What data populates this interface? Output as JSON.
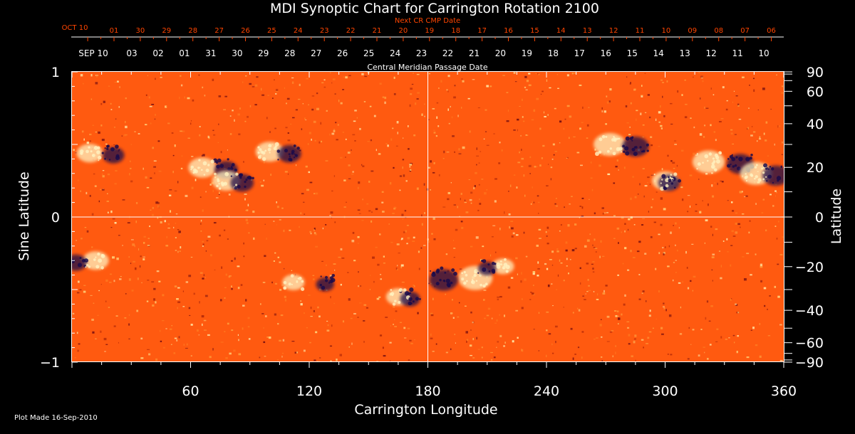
{
  "colors": {
    "background": "#000000",
    "text": "#ffffff",
    "accent": "#ff4500",
    "field_base": "#ff5a10",
    "positive_polarity": "#fff2c0",
    "negative_polarity": "#1a0a4a"
  },
  "chart_data": {
    "type": "heatmap",
    "title": "MDI Synoptic Chart for Carrington Rotation 2100",
    "xlabel": "Carrington Longitude",
    "ylabel_left": "Sine Latitude",
    "ylabel_right": "Latitude",
    "xlim": [
      0,
      360
    ],
    "ylim": [
      -1,
      1
    ],
    "x_ticks": [
      60,
      120,
      180,
      240,
      300,
      360
    ],
    "x_tick_labels": [
      "60",
      "120",
      "180",
      "240",
      "300",
      "360"
    ],
    "y_left_ticks": [
      {
        "value": 1,
        "label": "1"
      },
      {
        "value": 0,
        "label": "0"
      },
      {
        "value": -1,
        "label": "−1"
      }
    ],
    "y_right_ticks_deg": [
      {
        "deg": 90,
        "label": "90"
      },
      {
        "deg": 60,
        "label": "60"
      },
      {
        "deg": 40,
        "label": "40"
      },
      {
        "deg": 20,
        "label": "20"
      },
      {
        "deg": 0,
        "label": "0"
      },
      {
        "deg": -20,
        "label": "−20"
      },
      {
        "deg": -40,
        "label": "−40"
      },
      {
        "deg": -60,
        "label": "−60"
      },
      {
        "deg": -90,
        "label": "−90"
      }
    ],
    "cmp_axis_label": "Central Meridian Passage Date",
    "cmp_start_label": "SEP 10",
    "cmp_dates": [
      "03",
      "02",
      "01",
      "31",
      "30",
      "29",
      "28",
      "27",
      "26",
      "25",
      "24",
      "23",
      "22",
      "21",
      "20",
      "19",
      "18",
      "17",
      "16",
      "15",
      "14",
      "13",
      "12",
      "11",
      "10"
    ],
    "next_cr_label": "Next CR CMP Date",
    "next_cr_start_label": "OCT 10",
    "next_cr_dates": [
      "01",
      "30",
      "29",
      "28",
      "27",
      "26",
      "25",
      "24",
      "23",
      "22",
      "21",
      "20",
      "19",
      "18",
      "17",
      "16",
      "15",
      "14",
      "13",
      "12",
      "11",
      "10",
      "09",
      "08",
      "07",
      "06"
    ],
    "crosshair": {
      "longitude": 180,
      "sine_latitude": 0
    },
    "active_regions": [
      {
        "lon": 15,
        "sinlat": 0.44,
        "pos_dlon": -6,
        "neg_dlon": 6,
        "strength": 0.6
      },
      {
        "lon": 72,
        "sinlat": 0.34,
        "pos_dlon": -6,
        "neg_dlon": 6,
        "strength": 0.7
      },
      {
        "lon": 82,
        "sinlat": 0.25,
        "pos_dlon": -4,
        "neg_dlon": 4,
        "strength": 0.7
      },
      {
        "lon": 105,
        "sinlat": 0.45,
        "pos_dlon": -5,
        "neg_dlon": 5,
        "strength": 0.7
      },
      {
        "lon": 278,
        "sinlat": 0.5,
        "pos_dlon": -6,
        "neg_dlon": 7,
        "strength": 0.9
      },
      {
        "lon": 301,
        "sinlat": 0.25,
        "pos_dlon": -1,
        "neg_dlon": 1,
        "strength": 0.6
      },
      {
        "lon": 330,
        "sinlat": 0.38,
        "pos_dlon": -8,
        "neg_dlon": 8,
        "strength": 0.9
      },
      {
        "lon": 352,
        "sinlat": 0.3,
        "pos_dlon": -6,
        "neg_dlon": 4,
        "strength": 0.9
      },
      {
        "lon": 7,
        "sinlat": -0.3,
        "pos_dlon": 5,
        "neg_dlon": -5,
        "strength": 0.6
      },
      {
        "lon": 120,
        "sinlat": -0.45,
        "pos_dlon": -8,
        "neg_dlon": 8,
        "strength": 0.4
      },
      {
        "lon": 168,
        "sinlat": -0.55,
        "pos_dlon": -3,
        "neg_dlon": 3,
        "strength": 0.5
      },
      {
        "lon": 196,
        "sinlat": -0.42,
        "pos_dlon": 8,
        "neg_dlon": -8,
        "strength": 1.0
      },
      {
        "lon": 214,
        "sinlat": -0.34,
        "pos_dlon": 4,
        "neg_dlon": -4,
        "strength": 0.4
      }
    ]
  },
  "footer": {
    "plot_made": "Plot Made 16-Sep-2010"
  }
}
